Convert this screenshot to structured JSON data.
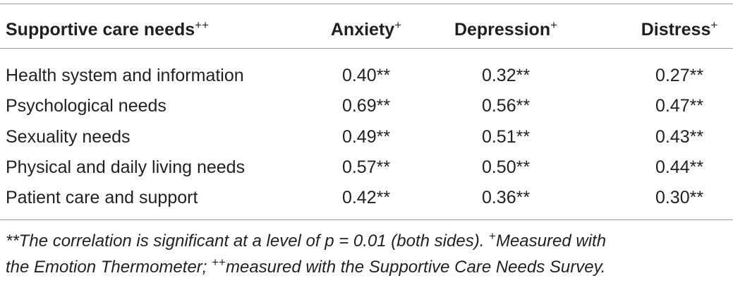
{
  "table": {
    "header": [
      {
        "text": "Supportive care needs",
        "sup": "++"
      },
      {
        "text": "Anxiety",
        "sup": "+"
      },
      {
        "text": "Depression",
        "sup": "+"
      },
      {
        "text": "Distress",
        "sup": "+"
      }
    ],
    "rows": [
      [
        "Health system and information",
        "0.40**",
        "0.32**",
        "0.27**"
      ],
      [
        "Psychological needs",
        "0.69**",
        "0.56**",
        "0.47**"
      ],
      [
        "Sexuality needs",
        "0.49**",
        "0.51**",
        "0.43**"
      ],
      [
        "Physical and daily living needs",
        "0.57**",
        "0.50**",
        "0.44**"
      ],
      [
        "Patient care and support",
        "0.42**",
        "0.36**",
        "0.30**"
      ]
    ]
  },
  "footnote": [
    [
      "**The correlation is significant at a level of p = 0.01 (both sides). ",
      "+",
      "Measured with"
    ],
    [
      "the Emotion Thermometer; ",
      "++",
      "measured with the Supportive Care Needs Survey."
    ]
  ]
}
